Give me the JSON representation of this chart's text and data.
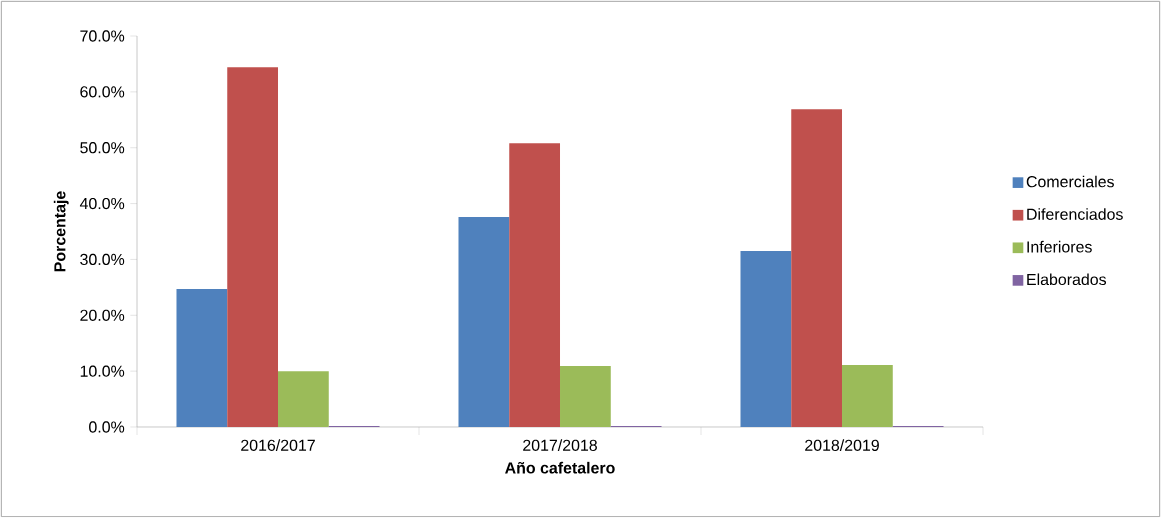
{
  "chart_data": {
    "type": "bar",
    "xlabel": "Año cafetalero",
    "ylabel": "Porcentaje",
    "categories": [
      "2016/2017",
      "2017/2018",
      "2018/2019"
    ],
    "series": [
      {
        "name": "Comerciales",
        "color": "#4f81bd",
        "values": [
          24.7,
          37.6,
          31.5
        ]
      },
      {
        "name": "Diferenciados",
        "color": "#c0504d",
        "values": [
          64.4,
          50.8,
          56.9
        ]
      },
      {
        "name": "Inferiores",
        "color": "#9bbb59",
        "values": [
          10.0,
          10.9,
          11.1
        ]
      },
      {
        "name": "Elaborados",
        "color": "#8064a2",
        "values": [
          0.2,
          0.2,
          0.2
        ]
      }
    ],
    "ylim": [
      0,
      70
    ],
    "yticks": [
      {
        "value": 0,
        "label": "0.0%"
      },
      {
        "value": 10,
        "label": "10.0%"
      },
      {
        "value": 20,
        "label": "20.0%"
      },
      {
        "value": 30,
        "label": "30.0%"
      },
      {
        "value": 40,
        "label": "40.0%"
      },
      {
        "value": 50,
        "label": "50.0%"
      },
      {
        "value": 60,
        "label": "60.0%"
      },
      {
        "value": 70,
        "label": "70.0%"
      }
    ],
    "grid": false,
    "legend": "right"
  }
}
